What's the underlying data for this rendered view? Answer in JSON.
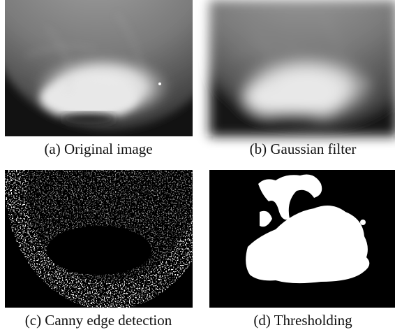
{
  "figure": {
    "panels": [
      {
        "caption": "(a) Original image"
      },
      {
        "caption": "(b) Gaussian filter"
      },
      {
        "caption": "(c) Canny edge detection"
      },
      {
        "caption": "(d) Thresholding"
      }
    ]
  }
}
